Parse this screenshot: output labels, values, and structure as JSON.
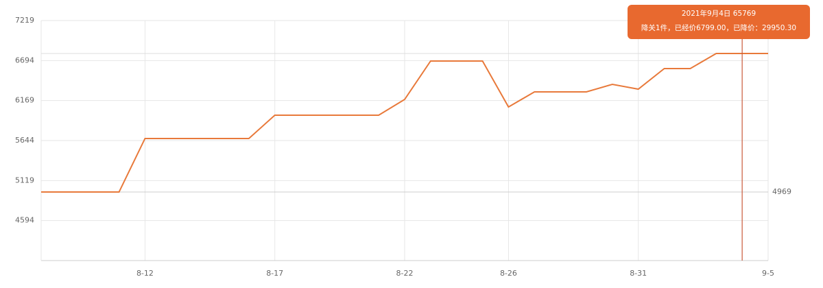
{
  "chart_data": {
    "type": "line",
    "categories": [
      null,
      null,
      null,
      null,
      "8-12",
      null,
      null,
      null,
      null,
      "8-17",
      null,
      null,
      null,
      null,
      "8-22",
      null,
      null,
      null,
      "8-26",
      null,
      null,
      null,
      null,
      "8-31",
      null,
      null,
      null,
      null,
      "9-5"
    ],
    "series": [
      {
        "color": "#e8793a",
        "values": [
          4969,
          4969,
          4969,
          4969,
          5671,
          5671,
          5671,
          5671,
          5671,
          5977,
          5977,
          5977,
          5977,
          5977,
          6184,
          6688,
          6688,
          6688,
          6085,
          6283,
          6283,
          6283,
          6382,
          6319,
          6589,
          6589,
          6787,
          6787,
          6787
        ]
      }
    ],
    "ylim": [
      4069,
      7219
    ],
    "yticks": [
      4594,
      5119,
      5644,
      6169,
      6694,
      7219
    ],
    "grid": true,
    "reference_line": {
      "value": 4969
    },
    "cursor_index": 27,
    "tooltip": {
      "title": "2021年9月4日  65769",
      "text": "降关1件，已经价6799.00，已降价：29950.30"
    }
  }
}
